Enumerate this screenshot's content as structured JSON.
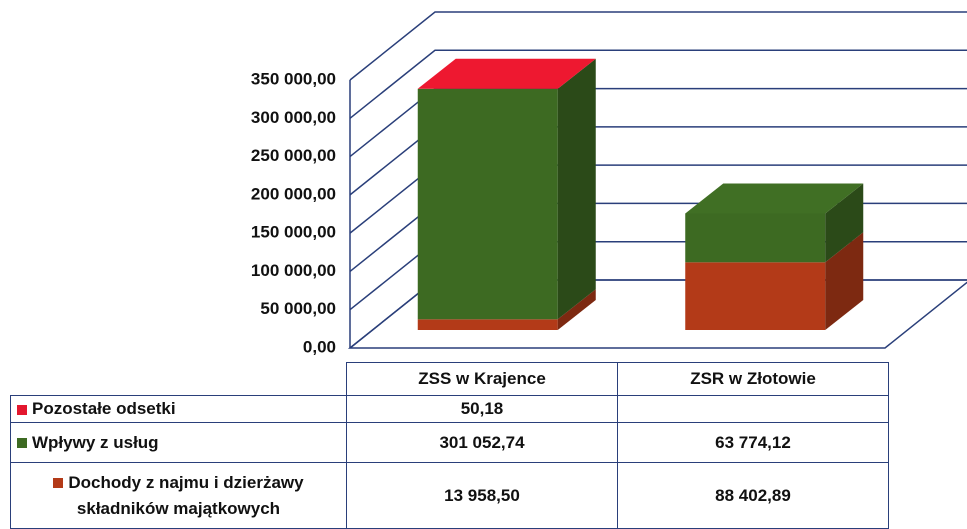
{
  "chart_data": {
    "type": "bar3d_stacked",
    "categories": [
      "ZSS w Krajence",
      "ZSR w Złotowie"
    ],
    "series": [
      {
        "name": "Pozostałe odsetki",
        "color": "#e3172e",
        "values": [
          50.18,
          null
        ],
        "value_labels": [
          "50,18",
          null
        ]
      },
      {
        "name": "Wpływy z usług",
        "color": "#3d6a22",
        "values": [
          301052.74,
          63774.12
        ],
        "value_labels": [
          "301 052,74",
          "63 774,12"
        ]
      },
      {
        "name": "Dochody z najmu i dzierżawy składników majątkowych",
        "color": "#b33a18",
        "values": [
          13958.5,
          88402.89
        ],
        "value_labels": [
          "13 958,50",
          "88 402,89"
        ]
      }
    ],
    "stack_order": "bottom-up from last series",
    "ylim": [
      0,
      350000
    ],
    "yticks": [
      {
        "value": 0,
        "label": "0,00"
      },
      {
        "value": 50000,
        "label": "50 000,00"
      },
      {
        "value": 100000,
        "label": "100 000,00"
      },
      {
        "value": 150000,
        "label": "150 000,00"
      },
      {
        "value": 200000,
        "label": "200 000,00"
      },
      {
        "value": 250000,
        "label": "250 000,00"
      },
      {
        "value": 300000,
        "label": "300 000,00"
      },
      {
        "value": 350000,
        "label": "350 000,00"
      }
    ],
    "grid": true
  }
}
